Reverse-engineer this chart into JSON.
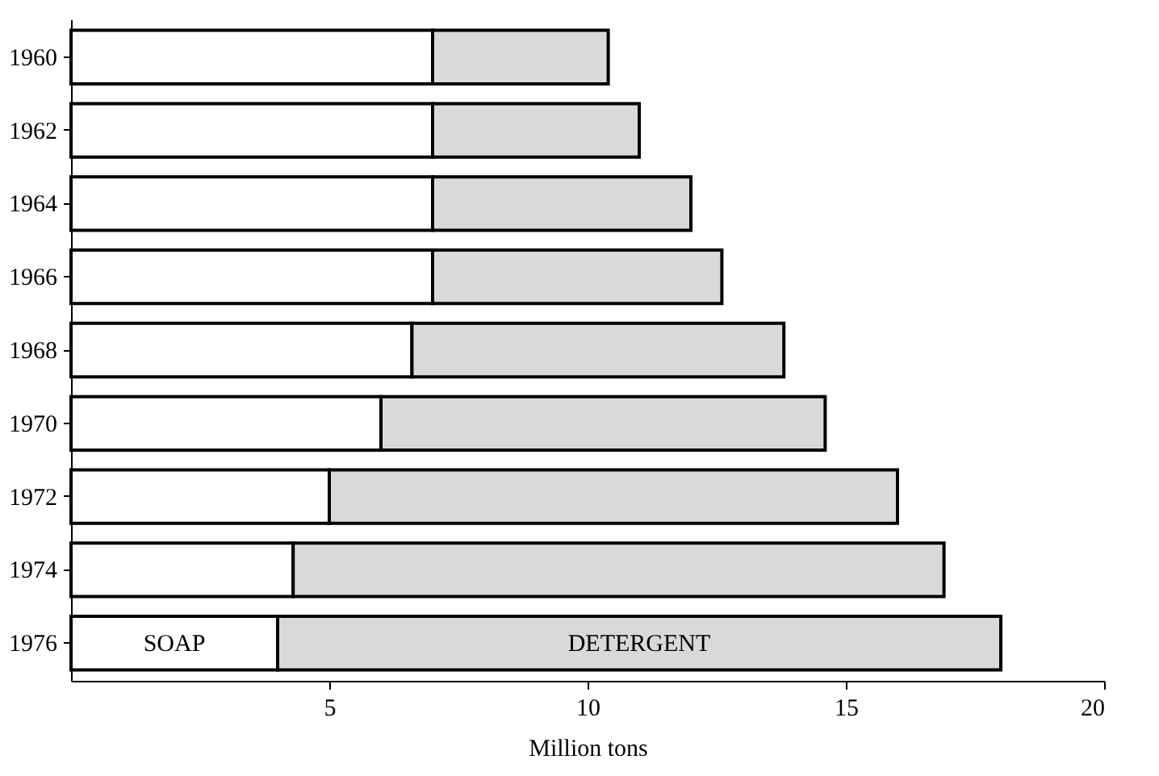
{
  "chart_data": {
    "type": "bar",
    "orientation": "horizontal",
    "stacked": true,
    "xlabel": "Million tons",
    "categories": [
      "1960",
      "1962",
      "1964",
      "1966",
      "1968",
      "1970",
      "1972",
      "1974",
      "1976"
    ],
    "series": [
      {
        "name": "SOAP",
        "color": "#ffffff",
        "values": [
          7.0,
          7.0,
          7.0,
          7.0,
          6.6,
          6.0,
          5.0,
          4.3,
          4.0
        ]
      },
      {
        "name": "DETERGENT",
        "color": "#d9d9d9",
        "values": [
          3.4,
          4.0,
          5.0,
          5.6,
          7.2,
          8.6,
          11.0,
          12.6,
          14.0
        ]
      }
    ],
    "xlim": [
      0,
      20
    ],
    "xticks": [
      5,
      10,
      15,
      20
    ],
    "grid": false,
    "legend": false
  }
}
